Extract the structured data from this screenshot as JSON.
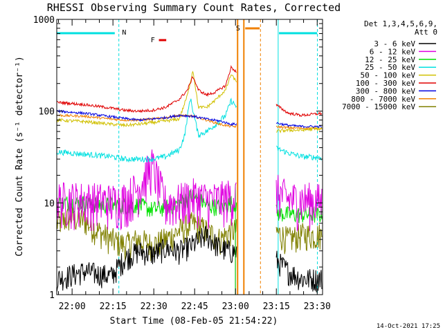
{
  "chart_data": {
    "type": "line",
    "title": "RHESSI Observing Summary Count Rates, Corrected",
    "xlabel": "Start Time (08-Feb-05 21:54:22)",
    "ylabel": "Corrected Count Rate (s⁻¹ detector⁻¹)",
    "yscale": "log",
    "ylim": [
      1,
      1000
    ],
    "xlim": [
      "21:54:22",
      "23:32:00"
    ],
    "x_tick_labels": [
      "22:00",
      "22:15",
      "22:30",
      "22:45",
      "23:00",
      "23:15",
      "23:30"
    ],
    "x_tick_minutes": [
      5.63,
      20.63,
      35.63,
      50.63,
      65.63,
      80.63,
      95.63
    ],
    "y_tick_labels": [
      "1",
      "10",
      "100",
      "1000"
    ],
    "y_tick_values": [
      1,
      10,
      100,
      1000
    ],
    "legend": {
      "header": [
        "Det 1,3,4,5,6,9,",
        "Att 0"
      ],
      "placement": "right"
    },
    "footer_date": "14-Oct-2021 17:25",
    "grid": false,
    "flags": [
      {
        "label": "N",
        "color": "#00e0e0"
      },
      {
        "label": "F",
        "color": "#e00000"
      },
      {
        "label": "S",
        "color": "#f08000"
      }
    ],
    "series": [
      {
        "name": "3 - 6 keV",
        "color": "#000000",
        "x": [
          0,
          10,
          20,
          25,
          30,
          35,
          40,
          45,
          50,
          55,
          60,
          64,
          80,
          85,
          90,
          98
        ],
        "y": [
          1.5,
          1.8,
          1.6,
          2.5,
          3.0,
          2.8,
          3.2,
          3.0,
          3.5,
          4.5,
          3.2,
          3.0,
          2.5,
          1.8,
          1.5,
          1.5
        ]
      },
      {
        "name": "6 - 12 keV",
        "color": "#e000e0",
        "x": [
          0,
          10,
          20,
          25,
          30,
          35,
          40,
          45,
          50,
          55,
          60,
          64,
          80,
          85,
          90,
          98
        ],
        "y": [
          11,
          11,
          10.5,
          11,
          15,
          26,
          10,
          10.5,
          12,
          11,
          11,
          12,
          14,
          11,
          11,
          10.5
        ]
      },
      {
        "name": "12 - 25 keV",
        "color": "#00e000",
        "x": [
          0,
          10,
          20,
          25,
          30,
          35,
          40,
          45,
          50,
          55,
          60,
          64,
          80,
          85,
          90,
          98
        ],
        "y": [
          10,
          10,
          9.5,
          9.5,
          9.5,
          8.5,
          9,
          10,
          12,
          9.5,
          9,
          10,
          8,
          7.5,
          7.5,
          7.5
        ]
      },
      {
        "name": "25 - 50 keV",
        "color": "#00e0e0",
        "x": [
          0,
          10,
          20,
          25,
          30,
          35,
          40,
          45,
          47,
          49,
          52,
          55,
          58,
          62,
          64,
          80,
          85,
          90,
          98
        ],
        "y": [
          36,
          34,
          32,
          30,
          30,
          30,
          32,
          38,
          55,
          140,
          55,
          60,
          70,
          90,
          130,
          40,
          35,
          32,
          31
        ]
      },
      {
        "name": "50 - 100 keV",
        "color": "#d0c000",
        "x": [
          0,
          10,
          20,
          25,
          30,
          35,
          40,
          45,
          48,
          50,
          52,
          55,
          58,
          62,
          64,
          80,
          85,
          90,
          98
        ],
        "y": [
          80,
          77,
          72,
          70,
          72,
          75,
          78,
          82,
          150,
          280,
          110,
          110,
          130,
          170,
          250,
          60,
          62,
          62,
          65
        ]
      },
      {
        "name": "100 - 300 keV",
        "color": "#e00000",
        "x": [
          0,
          10,
          20,
          25,
          30,
          35,
          40,
          45,
          48,
          50,
          52,
          55,
          58,
          62,
          64,
          80,
          85,
          90,
          98
        ],
        "y": [
          125,
          118,
          108,
          102,
          100,
          102,
          110,
          135,
          170,
          240,
          170,
          150,
          160,
          190,
          300,
          120,
          95,
          90,
          95
        ]
      },
      {
        "name": "300 - 800 keV",
        "color": "#0000e0",
        "x": [
          0,
          10,
          20,
          25,
          30,
          35,
          40,
          45,
          50,
          55,
          60,
          64,
          80,
          85,
          90,
          98
        ],
        "y": [
          100,
          95,
          87,
          83,
          80,
          82,
          85,
          90,
          88,
          82,
          78,
          72,
          75,
          70,
          68,
          68
        ]
      },
      {
        "name": "800 - 7000 keV",
        "color": "#f08000",
        "x": [
          0,
          10,
          20,
          25,
          30,
          35,
          40,
          45,
          50,
          55,
          60,
          64,
          80,
          85,
          90,
          98
        ],
        "y": [
          90,
          88,
          82,
          80,
          80,
          82,
          85,
          90,
          88,
          80,
          72,
          68,
          68,
          66,
          65,
          65
        ]
      },
      {
        "name": "7000 - 15000 keV",
        "color": "#808000",
        "x": [
          0,
          5,
          10,
          15,
          20,
          25,
          30,
          35,
          40,
          45,
          50,
          55,
          60,
          64,
          80,
          85,
          90,
          98
        ],
        "y": [
          6,
          7,
          6.5,
          5,
          4,
          3.5,
          4,
          3.5,
          4,
          5,
          6,
          5,
          4,
          5,
          5,
          4,
          4.5,
          4.5
        ]
      }
    ]
  }
}
